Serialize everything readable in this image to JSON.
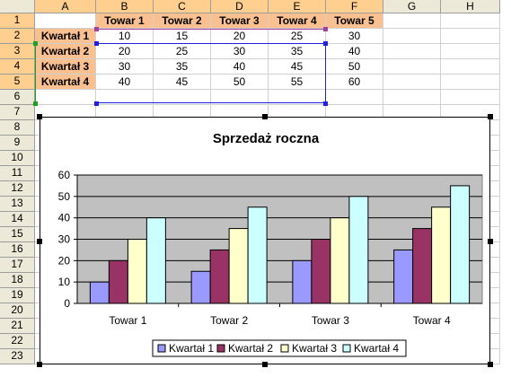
{
  "columns": [
    "A",
    "B",
    "C",
    "D",
    "E",
    "F",
    "G",
    "H"
  ],
  "rows": [
    "1",
    "2",
    "3",
    "4",
    "5",
    "6",
    "7",
    "8",
    "9",
    "10",
    "11",
    "12",
    "13",
    "14",
    "15",
    "16",
    "17",
    "18",
    "19",
    "20",
    "21",
    "22",
    "23"
  ],
  "header_row": [
    "",
    "Towar 1",
    "Towar 2",
    "Towar 3",
    "Towar 4",
    "Towar 5"
  ],
  "data_rows": [
    [
      "Kwartał 1",
      "10",
      "15",
      "20",
      "25",
      "30"
    ],
    [
      "Kwartał 2",
      "20",
      "25",
      "30",
      "35",
      "40"
    ],
    [
      "Kwartał 3",
      "30",
      "35",
      "40",
      "45",
      "50"
    ],
    [
      "Kwartał 4",
      "40",
      "45",
      "50",
      "55",
      "60"
    ]
  ],
  "colors": {
    "header_fill": "#fac090",
    "plot_area": "#c0c0c0",
    "series": [
      "#9999ff",
      "#993366",
      "#ffffcc",
      "#ccffff"
    ]
  },
  "chart_data": {
    "type": "bar",
    "title": "Sprzedaż roczna",
    "categories": [
      "Towar 1",
      "Towar 2",
      "Towar 3",
      "Towar 4"
    ],
    "series": [
      {
        "name": "Kwartał 1",
        "values": [
          10,
          15,
          20,
          25
        ]
      },
      {
        "name": "Kwartał 2",
        "values": [
          20,
          25,
          30,
          35
        ]
      },
      {
        "name": "Kwartał 3",
        "values": [
          30,
          35,
          40,
          45
        ]
      },
      {
        "name": "Kwartał 4",
        "values": [
          40,
          45,
          50,
          55
        ]
      }
    ],
    "ylim": [
      0,
      60
    ],
    "yticks": [
      0,
      10,
      20,
      30,
      40,
      50,
      60
    ],
    "grid": true,
    "legend": "bottom"
  }
}
